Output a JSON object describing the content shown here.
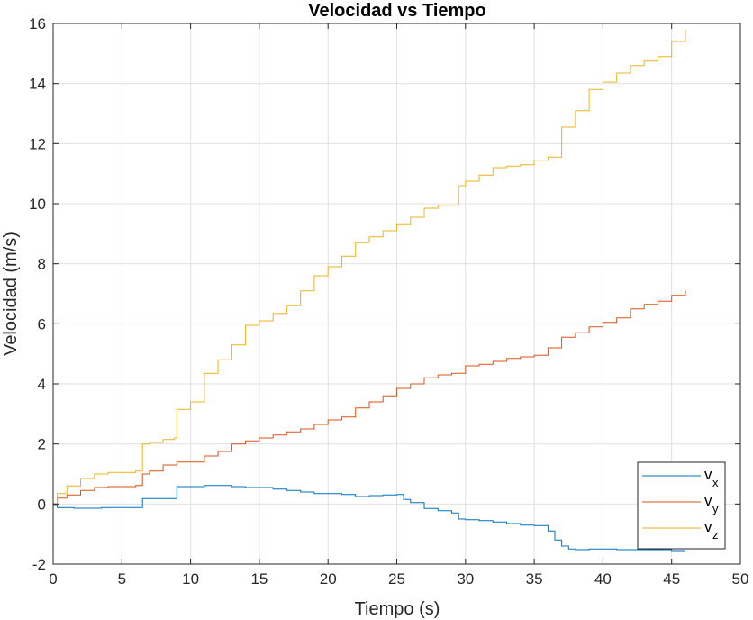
{
  "chart_data": {
    "type": "line",
    "title": "Velocidad vs Tiempo",
    "xlabel": "Tiempo (s)",
    "ylabel": "Velocidad (m/s)",
    "xlim": [
      0,
      50
    ],
    "ylim": [
      -2,
      16
    ],
    "xticks": [
      "0",
      "5",
      "10",
      "15",
      "20",
      "25",
      "30",
      "35",
      "40",
      "45",
      "50"
    ],
    "yticks": [
      "-2",
      "0",
      "2",
      "4",
      "6",
      "8",
      "10",
      "12",
      "14",
      "16"
    ],
    "grid": true,
    "legend_position": "bottom-right",
    "series": [
      {
        "name": "v",
        "subscript": "x",
        "color": "#0072BD",
        "x": [
          0,
          0.3,
          1.5,
          2.5,
          3.5,
          5,
          6.3,
          6.5,
          8,
          8.8,
          9,
          10,
          11,
          12,
          13,
          14,
          15,
          16,
          17,
          18,
          19,
          20,
          21,
          22,
          23,
          24,
          25,
          25.5,
          26,
          27,
          28,
          29,
          29.5,
          30,
          31,
          32,
          33,
          34,
          35,
          36,
          36.5,
          37,
          37.5,
          38,
          39,
          40,
          41,
          42,
          43,
          44,
          45,
          46
        ],
        "y": [
          -0.02,
          -0.12,
          -0.14,
          -0.14,
          -0.12,
          -0.12,
          -0.12,
          0.18,
          0.18,
          0.18,
          0.58,
          0.58,
          0.62,
          0.62,
          0.58,
          0.55,
          0.55,
          0.5,
          0.45,
          0.4,
          0.35,
          0.35,
          0.32,
          0.25,
          0.28,
          0.3,
          0.32,
          0.15,
          0.05,
          -0.15,
          -0.22,
          -0.3,
          -0.5,
          -0.52,
          -0.55,
          -0.6,
          -0.65,
          -0.7,
          -0.72,
          -0.9,
          -1.2,
          -1.4,
          -1.5,
          -1.52,
          -1.5,
          -1.5,
          -1.52,
          -1.52,
          -1.52,
          -1.52,
          -1.55,
          -1.55
        ]
      },
      {
        "name": "v",
        "subscript": "y",
        "color": "#D95319",
        "x": [
          0,
          0.3,
          1,
          2,
          3,
          4,
          5,
          6,
          6.5,
          7,
          8,
          9,
          10,
          11,
          12,
          13,
          14,
          15,
          16,
          17,
          18,
          19,
          20,
          21,
          22,
          23,
          24,
          25,
          26,
          27,
          28,
          29,
          30,
          31,
          32,
          33,
          34,
          35,
          36,
          37,
          38,
          39,
          40,
          41,
          42,
          43,
          44,
          45,
          46
        ],
        "y": [
          0,
          0.2,
          0.3,
          0.45,
          0.55,
          0.58,
          0.58,
          0.62,
          1.0,
          1.1,
          1.3,
          1.4,
          1.4,
          1.6,
          1.75,
          2.0,
          2.1,
          2.2,
          2.3,
          2.4,
          2.5,
          2.65,
          2.8,
          2.9,
          3.2,
          3.4,
          3.6,
          3.85,
          4.0,
          4.2,
          4.3,
          4.35,
          4.6,
          4.65,
          4.75,
          4.85,
          4.9,
          4.95,
          5.2,
          5.55,
          5.7,
          5.9,
          6.05,
          6.2,
          6.5,
          6.65,
          6.75,
          6.95,
          7.1
        ]
      },
      {
        "name": "v",
        "subscript": "z",
        "color": "#EDB120",
        "x": [
          0,
          0.3,
          1,
          2,
          3,
          4,
          5,
          6,
          6.5,
          7,
          8,
          8.8,
          9,
          10,
          11,
          12,
          13,
          14,
          15,
          16,
          17,
          18,
          19,
          20,
          21,
          22,
          23,
          24,
          25,
          26,
          27,
          28,
          29,
          29.5,
          30,
          31,
          32,
          33,
          34,
          35,
          36,
          37,
          38,
          39,
          40,
          41,
          42,
          43,
          44,
          45,
          46
        ],
        "y": [
          0,
          0.35,
          0.6,
          0.85,
          1.0,
          1.05,
          1.05,
          1.1,
          2.0,
          2.05,
          2.15,
          2.2,
          3.15,
          3.4,
          4.35,
          4.8,
          5.3,
          5.95,
          6.1,
          6.35,
          6.6,
          7.1,
          7.6,
          7.9,
          8.25,
          8.7,
          8.9,
          9.1,
          9.3,
          9.55,
          9.85,
          9.95,
          9.95,
          10.6,
          10.75,
          10.95,
          11.2,
          11.25,
          11.3,
          11.45,
          11.55,
          12.55,
          13.1,
          13.8,
          14.05,
          14.35,
          14.6,
          14.75,
          14.9,
          15.4,
          15.8
        ]
      }
    ]
  }
}
